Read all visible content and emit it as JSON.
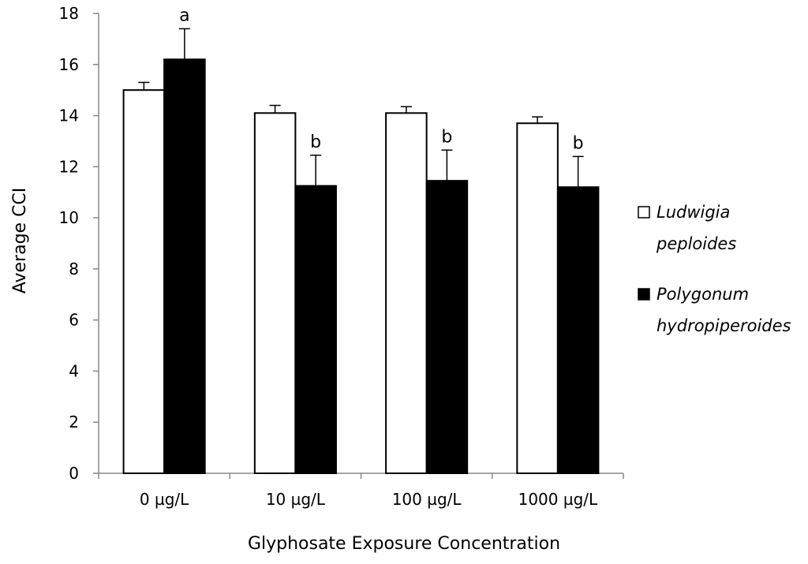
{
  "chart_data": {
    "type": "bar",
    "title": "",
    "xlabel": "Glyphosate Exposure Concentration",
    "ylabel": "Average CCI",
    "ylim": [
      0,
      18
    ],
    "yticks": [
      0,
      2,
      4,
      6,
      8,
      10,
      12,
      14,
      16,
      18
    ],
    "grid": false,
    "legend_position": "right",
    "categories": [
      "0 µg/L",
      "10 µg/L",
      "100 µg/L",
      "1000 µg/L"
    ],
    "series": [
      {
        "name": "Ludwigia peploides",
        "legend_lines": [
          "Ludwigia",
          "peploides"
        ],
        "fill": "#ffffff",
        "values": [
          15.0,
          14.1,
          14.1,
          13.7
        ],
        "errors": [
          0.3,
          0.3,
          0.25,
          0.25
        ],
        "labels": [
          "",
          "",
          "",
          ""
        ]
      },
      {
        "name": "Polygonum hydropiperoides",
        "legend_lines": [
          "Polygonum",
          "hydropiperoides"
        ],
        "fill": "#000000",
        "values": [
          16.2,
          11.25,
          11.45,
          11.2
        ],
        "errors": [
          1.2,
          1.2,
          1.2,
          1.2
        ],
        "labels": [
          "a",
          "b",
          "b",
          "b"
        ]
      }
    ]
  }
}
